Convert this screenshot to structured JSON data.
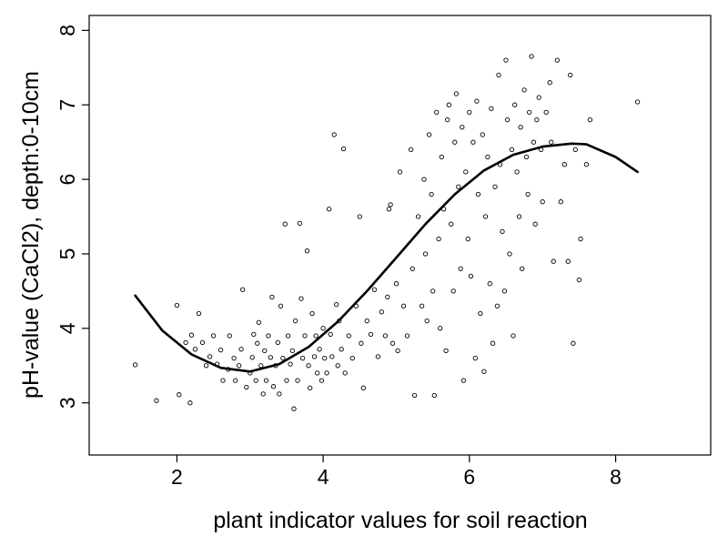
{
  "chart_data": {
    "type": "scatter",
    "title": "",
    "xlabel": "plant indicator values for soil reaction",
    "ylabel": "pH-value (CaCl2), depth:0-10cm",
    "xlim": [
      0.8,
      9.3
    ],
    "ylim": [
      2.3,
      8.2
    ],
    "xticks": [
      2,
      4,
      6,
      8
    ],
    "yticks": [
      3,
      4,
      5,
      6,
      7,
      8
    ],
    "grid": false,
    "legend": "none",
    "series": [
      {
        "kind": "points",
        "marker": "open-circle",
        "points": [
          [
            1.43,
            3.51
          ],
          [
            1.72,
            3.03
          ],
          [
            2.0,
            4.31
          ],
          [
            2.03,
            3.11
          ],
          [
            2.12,
            3.81
          ],
          [
            2.18,
            3.0
          ],
          [
            2.2,
            3.91
          ],
          [
            2.25,
            3.72
          ],
          [
            2.3,
            4.2
          ],
          [
            2.35,
            3.81
          ],
          [
            2.4,
            3.5
          ],
          [
            2.45,
            3.62
          ],
          [
            2.5,
            3.9
          ],
          [
            2.55,
            3.52
          ],
          [
            2.6,
            3.71
          ],
          [
            2.63,
            3.3
          ],
          [
            2.7,
            3.45
          ],
          [
            2.72,
            3.9
          ],
          [
            2.78,
            3.6
          ],
          [
            2.8,
            3.3
          ],
          [
            2.85,
            3.5
          ],
          [
            2.88,
            3.72
          ],
          [
            2.9,
            4.52
          ],
          [
            2.95,
            3.21
          ],
          [
            3.0,
            3.4
          ],
          [
            3.03,
            3.61
          ],
          [
            3.05,
            3.92
          ],
          [
            3.08,
            3.3
          ],
          [
            3.1,
            3.8
          ],
          [
            3.12,
            4.08
          ],
          [
            3.15,
            3.5
          ],
          [
            3.18,
            3.12
          ],
          [
            3.2,
            3.7
          ],
          [
            3.22,
            3.3
          ],
          [
            3.25,
            3.9
          ],
          [
            3.28,
            3.61
          ],
          [
            3.3,
            4.42
          ],
          [
            3.32,
            3.22
          ],
          [
            3.35,
            3.5
          ],
          [
            3.38,
            3.81
          ],
          [
            3.4,
            3.12
          ],
          [
            3.42,
            4.3
          ],
          [
            3.45,
            3.6
          ],
          [
            3.48,
            5.4
          ],
          [
            3.5,
            3.3
          ],
          [
            3.52,
            3.9
          ],
          [
            3.55,
            3.52
          ],
          [
            3.58,
            3.7
          ],
          [
            3.6,
            2.92
          ],
          [
            3.62,
            4.1
          ],
          [
            3.65,
            3.3
          ],
          [
            3.68,
            5.41
          ],
          [
            3.7,
            4.4
          ],
          [
            3.72,
            3.6
          ],
          [
            3.75,
            3.9
          ],
          [
            3.78,
            5.04
          ],
          [
            3.8,
            3.5
          ],
          [
            3.82,
            3.2
          ],
          [
            3.85,
            4.2
          ],
          [
            3.88,
            3.62
          ],
          [
            3.9,
            3.9
          ],
          [
            3.92,
            3.4
          ],
          [
            3.95,
            3.72
          ],
          [
            3.98,
            3.3
          ],
          [
            4.0,
            4.0
          ],
          [
            4.02,
            3.6
          ],
          [
            4.05,
            3.4
          ],
          [
            4.08,
            5.6
          ],
          [
            4.1,
            3.92
          ],
          [
            4.12,
            3.62
          ],
          [
            4.15,
            6.6
          ],
          [
            4.18,
            4.32
          ],
          [
            4.2,
            3.5
          ],
          [
            4.22,
            4.1
          ],
          [
            4.25,
            3.72
          ],
          [
            4.28,
            6.41
          ],
          [
            4.3,
            3.4
          ],
          [
            4.35,
            3.9
          ],
          [
            4.4,
            3.6
          ],
          [
            4.45,
            4.3
          ],
          [
            4.5,
            5.5
          ],
          [
            4.52,
            3.8
          ],
          [
            4.55,
            3.2
          ],
          [
            4.6,
            4.1
          ],
          [
            4.65,
            3.92
          ],
          [
            4.7,
            4.52
          ],
          [
            4.75,
            3.62
          ],
          [
            4.8,
            4.22
          ],
          [
            4.85,
            3.9
          ],
          [
            4.88,
            4.42
          ],
          [
            4.9,
            5.6
          ],
          [
            4.92,
            5.66
          ],
          [
            4.95,
            3.8
          ],
          [
            5.0,
            4.6
          ],
          [
            5.02,
            3.7
          ],
          [
            5.05,
            6.1
          ],
          [
            5.1,
            4.3
          ],
          [
            5.15,
            3.9
          ],
          [
            5.2,
            6.4
          ],
          [
            5.22,
            4.8
          ],
          [
            5.25,
            3.1
          ],
          [
            5.3,
            5.5
          ],
          [
            5.35,
            4.3
          ],
          [
            5.38,
            6.0
          ],
          [
            5.4,
            5.0
          ],
          [
            5.42,
            4.1
          ],
          [
            5.45,
            6.6
          ],
          [
            5.48,
            5.8
          ],
          [
            5.5,
            4.5
          ],
          [
            5.52,
            3.1
          ],
          [
            5.55,
            6.9
          ],
          [
            5.58,
            5.2
          ],
          [
            5.6,
            4.0
          ],
          [
            5.62,
            6.3
          ],
          [
            5.65,
            5.6
          ],
          [
            5.68,
            3.7
          ],
          [
            5.7,
            6.8
          ],
          [
            5.72,
            7.0
          ],
          [
            5.75,
            5.4
          ],
          [
            5.78,
            4.5
          ],
          [
            5.8,
            6.5
          ],
          [
            5.82,
            7.15
          ],
          [
            5.85,
            5.9
          ],
          [
            5.88,
            4.8
          ],
          [
            5.9,
            6.7
          ],
          [
            5.92,
            3.3
          ],
          [
            5.95,
            6.1
          ],
          [
            5.98,
            5.2
          ],
          [
            6.0,
            6.9
          ],
          [
            6.02,
            4.7
          ],
          [
            6.05,
            6.5
          ],
          [
            6.08,
            3.6
          ],
          [
            6.1,
            7.05
          ],
          [
            6.12,
            5.8
          ],
          [
            6.15,
            4.2
          ],
          [
            6.18,
            6.6
          ],
          [
            6.2,
            3.42
          ],
          [
            6.22,
            5.5
          ],
          [
            6.25,
            6.3
          ],
          [
            6.28,
            4.6
          ],
          [
            6.3,
            6.95
          ],
          [
            6.32,
            3.8
          ],
          [
            6.35,
            5.9
          ],
          [
            6.38,
            4.3
          ],
          [
            6.4,
            7.4
          ],
          [
            6.42,
            6.2
          ],
          [
            6.45,
            5.3
          ],
          [
            6.48,
            4.5
          ],
          [
            6.5,
            7.6
          ],
          [
            6.52,
            6.8
          ],
          [
            6.55,
            5.0
          ],
          [
            6.58,
            6.4
          ],
          [
            6.6,
            3.9
          ],
          [
            6.62,
            7.0
          ],
          [
            6.65,
            6.1
          ],
          [
            6.68,
            5.5
          ],
          [
            6.7,
            6.7
          ],
          [
            6.72,
            4.8
          ],
          [
            6.75,
            7.2
          ],
          [
            6.78,
            6.3
          ],
          [
            6.8,
            5.8
          ],
          [
            6.82,
            6.9
          ],
          [
            6.85,
            7.65
          ],
          [
            6.88,
            6.5
          ],
          [
            6.9,
            5.4
          ],
          [
            6.92,
            6.8
          ],
          [
            6.95,
            7.1
          ],
          [
            6.98,
            6.4
          ],
          [
            7.0,
            5.7
          ],
          [
            7.05,
            6.9
          ],
          [
            7.1,
            7.3
          ],
          [
            7.12,
            6.5
          ],
          [
            7.15,
            4.9
          ],
          [
            7.2,
            7.6
          ],
          [
            7.25,
            5.7
          ],
          [
            7.3,
            6.2
          ],
          [
            7.35,
            4.9
          ],
          [
            7.38,
            7.4
          ],
          [
            7.42,
            3.8
          ],
          [
            7.45,
            6.4
          ],
          [
            7.5,
            4.65
          ],
          [
            7.52,
            5.2
          ],
          [
            7.6,
            6.2
          ],
          [
            7.65,
            6.8
          ],
          [
            8.3,
            7.04
          ]
        ]
      },
      {
        "kind": "smooth-line",
        "points": [
          [
            1.43,
            4.44
          ],
          [
            1.8,
            3.97
          ],
          [
            2.2,
            3.65
          ],
          [
            2.6,
            3.47
          ],
          [
            3.0,
            3.42
          ],
          [
            3.4,
            3.52
          ],
          [
            3.8,
            3.75
          ],
          [
            4.2,
            4.09
          ],
          [
            4.6,
            4.5
          ],
          [
            5.0,
            4.95
          ],
          [
            5.4,
            5.4
          ],
          [
            5.8,
            5.8
          ],
          [
            6.2,
            6.12
          ],
          [
            6.6,
            6.33
          ],
          [
            7.0,
            6.44
          ],
          [
            7.4,
            6.48
          ],
          [
            7.6,
            6.47
          ],
          [
            8.0,
            6.3
          ],
          [
            8.3,
            6.1
          ]
        ]
      }
    ]
  }
}
